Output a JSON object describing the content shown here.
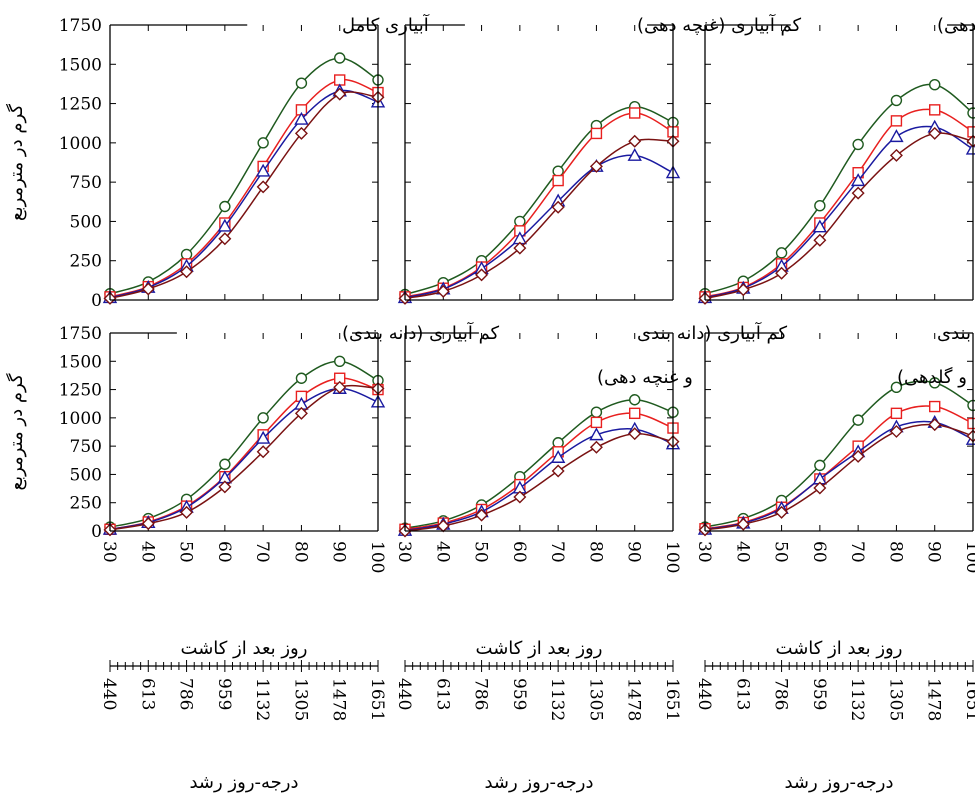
{
  "chart_data": {
    "type": "line",
    "y_axis_label": "گرم در مترمربع",
    "x_axis_label": "روز بعد از کاشت",
    "x2_axis_label": "درجه-روز رشد",
    "x_ticks": [
      30,
      40,
      50,
      60,
      70,
      80,
      90,
      100
    ],
    "x2_ticks": [
      440,
      613,
      786,
      959,
      1132,
      1305,
      1478,
      1651
    ],
    "y_ticks": [
      0,
      250,
      500,
      750,
      1000,
      1250,
      1500,
      1750
    ],
    "xlim": [
      30,
      100
    ],
    "ylim": [
      0,
      1750
    ],
    "x": [
      30,
      40,
      50,
      60,
      70,
      80,
      90,
      100
    ],
    "series_styles": [
      {
        "marker": "circle",
        "color": "#1f5a1f"
      },
      {
        "marker": "square",
        "color": "#e8201f"
      },
      {
        "marker": "triangle",
        "color": "#1a1aa0"
      },
      {
        "marker": "diamond",
        "color": "#7a1212"
      }
    ],
    "panels": [
      {
        "title_lines": [
          "آبیاری کامل"
        ],
        "series": [
          {
            "values": [
              40,
              115,
              290,
              595,
              1000,
              1380,
              1540,
              1400
            ]
          },
          {
            "values": [
              20,
              85,
              230,
              490,
              850,
              1210,
              1400,
              1320
            ]
          },
          {
            "values": [
              15,
              80,
              215,
              470,
              820,
              1150,
              1330,
              1260
            ]
          },
          {
            "values": [
              10,
              70,
              180,
              390,
              720,
              1060,
              1310,
              1290
            ]
          }
        ]
      },
      {
        "title_lines": [
          "کم آبیاری (غنچه دهی)"
        ],
        "series": [
          {
            "values": [
              35,
              110,
              250,
              500,
              820,
              1110,
              1230,
              1130
            ]
          },
          {
            "values": [
              20,
              75,
              210,
              440,
              760,
              1060,
              1190,
              1070
            ]
          },
          {
            "values": [
              15,
              70,
              200,
              390,
              630,
              850,
              920,
              810
            ]
          },
          {
            "values": [
              10,
              55,
              160,
              330,
              590,
              850,
              1010,
              1010
            ]
          }
        ]
      },
      {
        "title_lines": [
          "کم آبیاری (گلدهی)"
        ],
        "series": [
          {
            "values": [
              40,
              120,
              300,
              600,
              990,
              1270,
              1370,
              1190
            ]
          },
          {
            "values": [
              20,
              80,
              230,
              490,
              810,
              1140,
              1210,
              1070
            ]
          },
          {
            "values": [
              15,
              75,
              215,
              465,
              760,
              1040,
              1100,
              960
            ]
          },
          {
            "values": [
              10,
              65,
              170,
              380,
              680,
              920,
              1060,
              1010
            ]
          }
        ]
      },
      {
        "title_lines": [
          "کم آبیاری (دانه بندی)"
        ],
        "series": [
          {
            "values": [
              35,
              110,
              280,
              590,
              1000,
              1350,
              1500,
              1330
            ]
          },
          {
            "values": [
              15,
              80,
              220,
              480,
              850,
              1190,
              1350,
              1250
            ]
          },
          {
            "values": [
              15,
              75,
              210,
              470,
              820,
              1120,
              1260,
              1140
            ]
          },
          {
            "values": [
              10,
              65,
              165,
              390,
              700,
              1040,
              1270,
              1260
            ]
          }
        ]
      },
      {
        "title_lines": [
          "کم آبیاری (دانه بندی",
          "و غنچه دهی)"
        ],
        "series": [
          {
            "values": [
              25,
              90,
              230,
              480,
              780,
              1050,
              1160,
              1050
            ]
          },
          {
            "values": [
              15,
              70,
              190,
              410,
              700,
              960,
              1040,
              910
            ]
          },
          {
            "values": [
              5,
              60,
              170,
              380,
              650,
              850,
              900,
              770
            ]
          },
          {
            "values": [
              0,
              45,
              140,
              300,
              530,
              740,
              860,
              790
            ]
          }
        ]
      },
      {
        "title_lines": [
          "کم آبیاری (دانه بندی",
          "و گلدهی)"
        ],
        "series": [
          {
            "values": [
              35,
              110,
              270,
              580,
              980,
              1270,
              1310,
              1110
            ]
          },
          {
            "values": [
              20,
              75,
              210,
              460,
              750,
              1040,
              1100,
              950
            ]
          },
          {
            "values": [
              15,
              70,
              200,
              460,
              700,
              920,
              960,
              810
            ]
          },
          {
            "values": [
              10,
              60,
              165,
              380,
              660,
              880,
              940,
              840
            ]
          }
        ]
      }
    ]
  }
}
